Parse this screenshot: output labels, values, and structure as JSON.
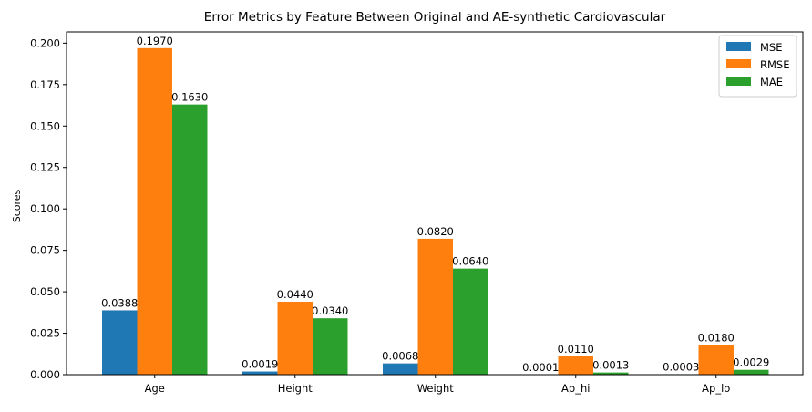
{
  "chart_data": {
    "type": "bar",
    "title": "Error Metrics by Feature Between Original and AE-synthetic Cardiovascular",
    "xlabel": "",
    "ylabel": "Scores",
    "categories": [
      "Age",
      "Height",
      "Weight",
      "Ap_hi",
      "Ap_lo"
    ],
    "series": [
      {
        "name": "MSE",
        "color": "#1f77b4",
        "values": [
          0.0388,
          0.0019,
          0.0068,
          0.0001,
          0.0003
        ],
        "labels": [
          "0.0388",
          "0.0019",
          "0.0068",
          "0.0001",
          "0.0003"
        ]
      },
      {
        "name": "RMSE",
        "color": "#ff7f0e",
        "values": [
          0.197,
          0.044,
          0.082,
          0.011,
          0.018
        ],
        "labels": [
          "0.1970",
          "0.0440",
          "0.0820",
          "0.0110",
          "0.0180"
        ]
      },
      {
        "name": "MAE",
        "color": "#2ca02c",
        "values": [
          0.163,
          0.034,
          0.064,
          0.0013,
          0.0029
        ],
        "labels": [
          "0.1630",
          "0.0340",
          "0.0640",
          "0.0013",
          "0.0029"
        ]
      }
    ],
    "ylim": [
      0,
      0.2068
    ],
    "yticks": [
      0.0,
      0.025,
      0.05,
      0.075,
      0.1,
      0.125,
      0.15,
      0.175,
      0.2
    ],
    "ytick_labels": [
      "0.000",
      "0.025",
      "0.050",
      "0.075",
      "0.100",
      "0.125",
      "0.150",
      "0.175",
      "0.200"
    ],
    "grid": false,
    "legend_position": "top-right"
  }
}
